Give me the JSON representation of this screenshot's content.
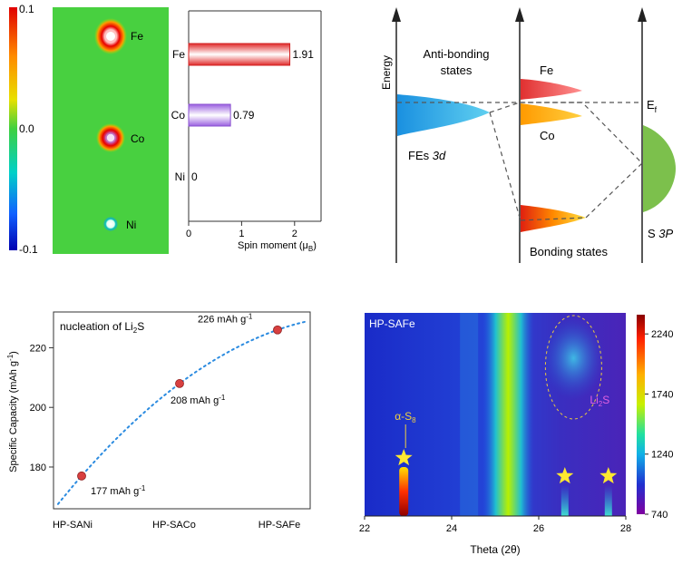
{
  "chart_data": [
    {
      "type": "heatmap",
      "panel": "spin-density-map",
      "colorbar": {
        "max_label": "0.1",
        "mid_label": "0.0",
        "min_label": "-0.1",
        "range": [
          -0.1,
          0.1
        ]
      },
      "atoms": [
        {
          "label": "Fe",
          "spin": "high"
        },
        {
          "label": "Co",
          "spin": "medium"
        },
        {
          "label": "Ni",
          "spin": "none"
        }
      ]
    },
    {
      "type": "bar",
      "orientation": "horizontal",
      "categories": [
        "Fe",
        "Co",
        "Ni"
      ],
      "values": [
        1.91,
        0.79,
        0
      ],
      "value_labels": [
        "1.91",
        "0.79",
        "0"
      ],
      "xlabel": "Spin moment (μ",
      "xlabel_sub": "B",
      "xlim": [
        0,
        2.5
      ],
      "xticks": [
        "0",
        "1",
        "2"
      ],
      "colors": [
        "#e8303a",
        "#9a6ae0",
        "#cccccc"
      ]
    },
    {
      "type": "diagram",
      "panel": "orbital-energy-diagram",
      "ylabel": "Energy",
      "labels": {
        "antibonding_line1": "Anti-bonding",
        "antibonding_line2": "states",
        "fe": "Fe",
        "co": "Co",
        "ef_main": "E",
        "ef_sub": "f",
        "fes_prefix": "FEs ",
        "fes_italic": "3d",
        "bonding": "Bonding states",
        "s_prefix": "S ",
        "s_italic": "3P"
      }
    },
    {
      "type": "scatter",
      "categories": [
        "HP-SANi",
        "HP-SACo",
        "HP-SAFe"
      ],
      "values": [
        177,
        208,
        226
      ],
      "point_labels": [
        "177 mAh g",
        "208 mAh g",
        "226 mAh g"
      ],
      "label_sup": "-1",
      "annotation_main": "nucleation of Li",
      "annotation_sub": "2",
      "annotation_end": "S",
      "ylabel_main": "Specific Capacity (mAh g",
      "ylabel_sup": "-1",
      "ylabel_end": ")",
      "yticks": [
        180,
        200,
        220
      ],
      "ylim": [
        166,
        232
      ],
      "trend": "dotted quadratic fit",
      "colors": {
        "point": "#d84040",
        "trend": "#2b8be0"
      }
    },
    {
      "type": "heatmap",
      "panel": "in-situ-xrd",
      "title": "HP-SAFe",
      "xlabel": "Theta (2θ)",
      "xticks": [
        22,
        24,
        26,
        28
      ],
      "xlim": [
        22,
        28
      ],
      "colorbar_ticks": [
        2240,
        1740,
        1240,
        740
      ],
      "colorbar_range": [
        740,
        2400
      ],
      "annotations": [
        {
          "text": "α-S",
          "sub": "8",
          "x": 22.9
        },
        {
          "text": "Li",
          "sub": "2",
          "end": "S",
          "x": 27.3
        }
      ],
      "stars_at": [
        22.9,
        26.6,
        27.6
      ],
      "bands": [
        {
          "center": 25.3,
          "level": "high"
        },
        {
          "center": 22.9,
          "level": "peak"
        },
        {
          "center": 26.6,
          "level": "medium"
        },
        {
          "center": 27.6,
          "level": "medium"
        }
      ]
    }
  ]
}
